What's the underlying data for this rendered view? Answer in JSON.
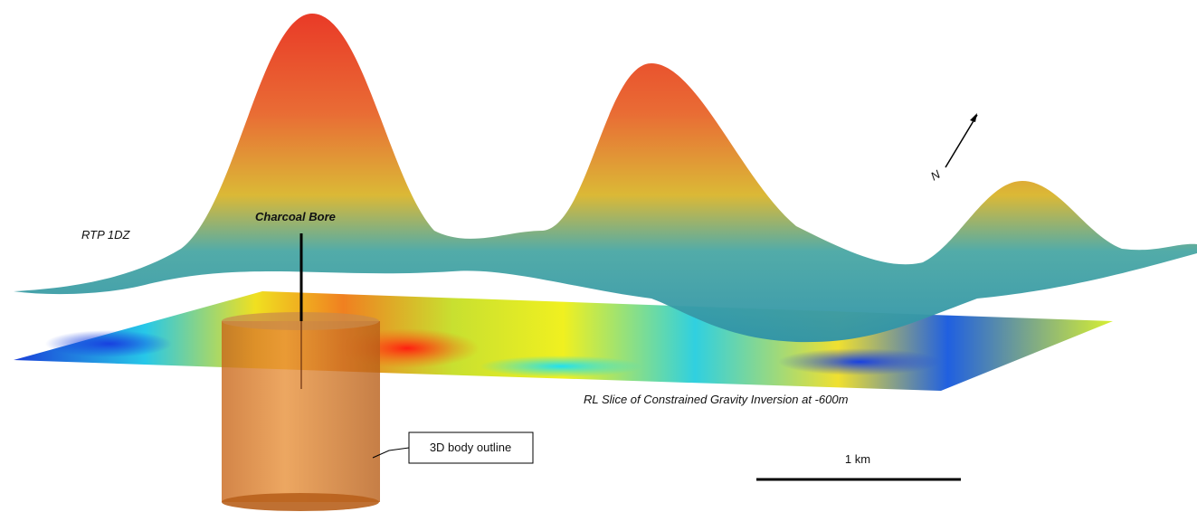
{
  "labels": {
    "surface": "RTP 1DZ",
    "bore": "Charcoal Bore",
    "slice": "RL Slice of Constrained Gravity Inversion at -600m",
    "body": "3D body outline",
    "scale": "1 km",
    "north": "N"
  }
}
